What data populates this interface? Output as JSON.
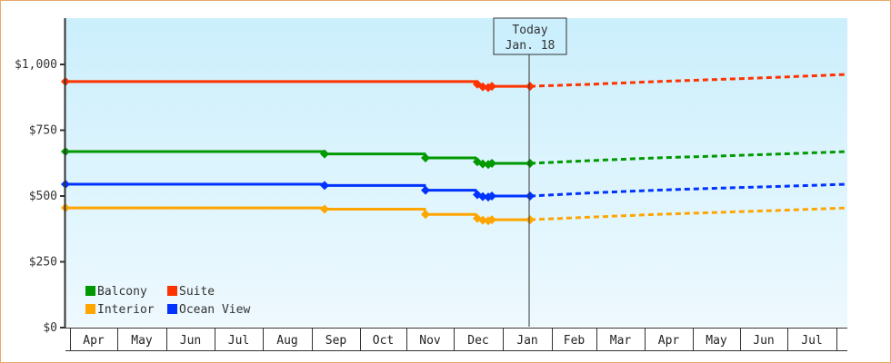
{
  "chart_data": {
    "type": "line",
    "title": "",
    "xlabel": "",
    "ylabel": "",
    "ylim": [
      0,
      1200
    ],
    "y_ticks": [
      {
        "value": 0,
        "label": "$0"
      },
      {
        "value": 250,
        "label": "$250"
      },
      {
        "value": 500,
        "label": "$500"
      },
      {
        "value": 750,
        "label": "$750"
      },
      {
        "value": 1000,
        "label": "$1,000"
      }
    ],
    "x_categories": [
      "Apr",
      "May",
      "Jun",
      "Jul",
      "Aug",
      "Sep",
      "Oct",
      "Nov",
      "Dec",
      "Jan",
      "Feb",
      "Mar",
      "Apr",
      "May",
      "Jun",
      "Jul"
    ],
    "today_marker": {
      "line1": "Today",
      "line2": "Jan. 18"
    },
    "legend": [
      {
        "name": "Balcony",
        "color": "#009900"
      },
      {
        "name": "Suite",
        "color": "#ff3300"
      },
      {
        "name": "Interior",
        "color": "#ffa500"
      },
      {
        "name": "Ocean View",
        "color": "#0033ff"
      }
    ],
    "series": [
      {
        "name": "Suite",
        "color": "#ff3300",
        "history": [
          [
            71,
            935
          ],
          [
            522,
            935
          ],
          [
            524,
            925
          ],
          [
            530,
            915
          ],
          [
            536,
            912
          ],
          [
            540,
            917
          ],
          [
            582,
            917
          ]
        ],
        "forecast": [
          [
            582,
            917
          ],
          [
            650,
            925
          ],
          [
            720,
            935
          ],
          [
            790,
            943
          ],
          [
            860,
            952
          ],
          [
            931,
            962
          ]
        ]
      },
      {
        "name": "Balcony",
        "color": "#009900",
        "history": [
          [
            71,
            669
          ],
          [
            355,
            669
          ],
          [
            356,
            660
          ],
          [
            466,
            660
          ],
          [
            467,
            645
          ],
          [
            522,
            645
          ],
          [
            524,
            630
          ],
          [
            530,
            622
          ],
          [
            536,
            620
          ],
          [
            540,
            624
          ],
          [
            582,
            624
          ]
        ],
        "forecast": [
          [
            582,
            624
          ],
          [
            650,
            635
          ],
          [
            720,
            645
          ],
          [
            790,
            652
          ],
          [
            860,
            660
          ],
          [
            931,
            669
          ]
        ]
      },
      {
        "name": "Ocean View",
        "color": "#0033ff",
        "history": [
          [
            71,
            545
          ],
          [
            355,
            545
          ],
          [
            356,
            540
          ],
          [
            466,
            540
          ],
          [
            467,
            522
          ],
          [
            522,
            522
          ],
          [
            524,
            505
          ],
          [
            530,
            498
          ],
          [
            536,
            496
          ],
          [
            540,
            500
          ],
          [
            582,
            500
          ]
        ],
        "forecast": [
          [
            582,
            500
          ],
          [
            650,
            512
          ],
          [
            720,
            522
          ],
          [
            790,
            530
          ],
          [
            860,
            537
          ],
          [
            931,
            545
          ]
        ]
      },
      {
        "name": "Interior",
        "color": "#ffa500",
        "history": [
          [
            71,
            455
          ],
          [
            355,
            455
          ],
          [
            356,
            450
          ],
          [
            466,
            450
          ],
          [
            467,
            430
          ],
          [
            522,
            430
          ],
          [
            524,
            415
          ],
          [
            530,
            408
          ],
          [
            536,
            406
          ],
          [
            540,
            410
          ],
          [
            582,
            410
          ]
        ],
        "forecast": [
          [
            582,
            410
          ],
          [
            650,
            420
          ],
          [
            720,
            430
          ],
          [
            790,
            438
          ],
          [
            860,
            446
          ],
          [
            931,
            455
          ]
        ]
      }
    ]
  }
}
